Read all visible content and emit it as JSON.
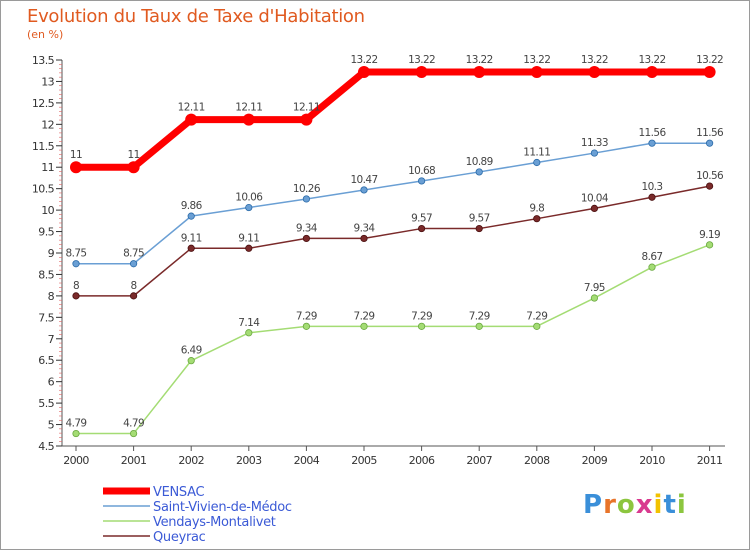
{
  "chart_data": {
    "type": "line",
    "title": "Evolution du Taux de Taxe d'Habitation",
    "subtitle": "(en %)",
    "x": [
      "2000",
      "2001",
      "2002",
      "2003",
      "2004",
      "2005",
      "2006",
      "2007",
      "2008",
      "2009",
      "2010",
      "2011"
    ],
    "ylim": [
      4.5,
      13.5
    ],
    "y_ticks": [
      "4.5",
      "5",
      "5.5",
      "6",
      "6.5",
      "7",
      "7.5",
      "8",
      "8.5",
      "9",
      "9.5",
      "10",
      "10.5",
      "11",
      "11.5",
      "12",
      "12.5",
      "13",
      "13.5"
    ],
    "grid": false,
    "legend_position": "bottom-left",
    "series": [
      {
        "name": "VENSAC",
        "color": "#ff0000",
        "values": [
          11,
          11,
          12.11,
          12.11,
          12.11,
          13.22,
          13.22,
          13.22,
          13.22,
          13.22,
          13.22,
          13.22
        ],
        "labels": [
          "11",
          "11",
          "12.11",
          "12.11",
          "12.11",
          "13.22",
          "13.22",
          "13.22",
          "13.22",
          "13.22",
          "13.22",
          "13.22"
        ]
      },
      {
        "name": "Saint-Vivien-de-Médoc",
        "color": "#6a9fd4",
        "values": [
          8.75,
          8.75,
          9.86,
          10.06,
          10.26,
          10.47,
          10.68,
          10.89,
          11.11,
          11.33,
          11.56,
          11.56
        ],
        "labels": [
          "8.75",
          "8.75",
          "9.86",
          "10.06",
          "10.26",
          "10.47",
          "10.68",
          "10.89",
          "11.11",
          "11.33",
          "11.56",
          "11.56"
        ]
      },
      {
        "name": "Vendays-Montalivet",
        "color": "#a4dc74",
        "values": [
          4.79,
          4.79,
          6.49,
          7.14,
          7.29,
          7.29,
          7.29,
          7.29,
          7.29,
          7.95,
          8.67,
          9.19
        ],
        "labels": [
          "4.79",
          "4.79",
          "6.49",
          "7.14",
          "7.29",
          "7.29",
          "7.29",
          "7.29",
          "7.29",
          "7.95",
          "8.67",
          "9.19"
        ]
      },
      {
        "name": "Queyrac",
        "color": "#7a2a2a",
        "values": [
          8,
          8,
          9.11,
          9.11,
          9.34,
          9.34,
          9.57,
          9.57,
          9.8,
          10.04,
          10.3,
          10.56
        ],
        "labels": [
          "8",
          "8",
          "9.11",
          "9.11",
          "9.34",
          "9.34",
          "9.57",
          "9.57",
          "9.8",
          "10.04",
          "10.3",
          "10.56"
        ]
      }
    ]
  },
  "brand": {
    "letters": [
      "P",
      "r",
      "o",
      "x",
      "i",
      "t",
      "i"
    ],
    "colors": [
      "#3a8fd9",
      "#e8742a",
      "#8cc63f",
      "#d93a8f",
      "#f2c200",
      "#3a8fd9",
      "#8cc63f"
    ]
  }
}
